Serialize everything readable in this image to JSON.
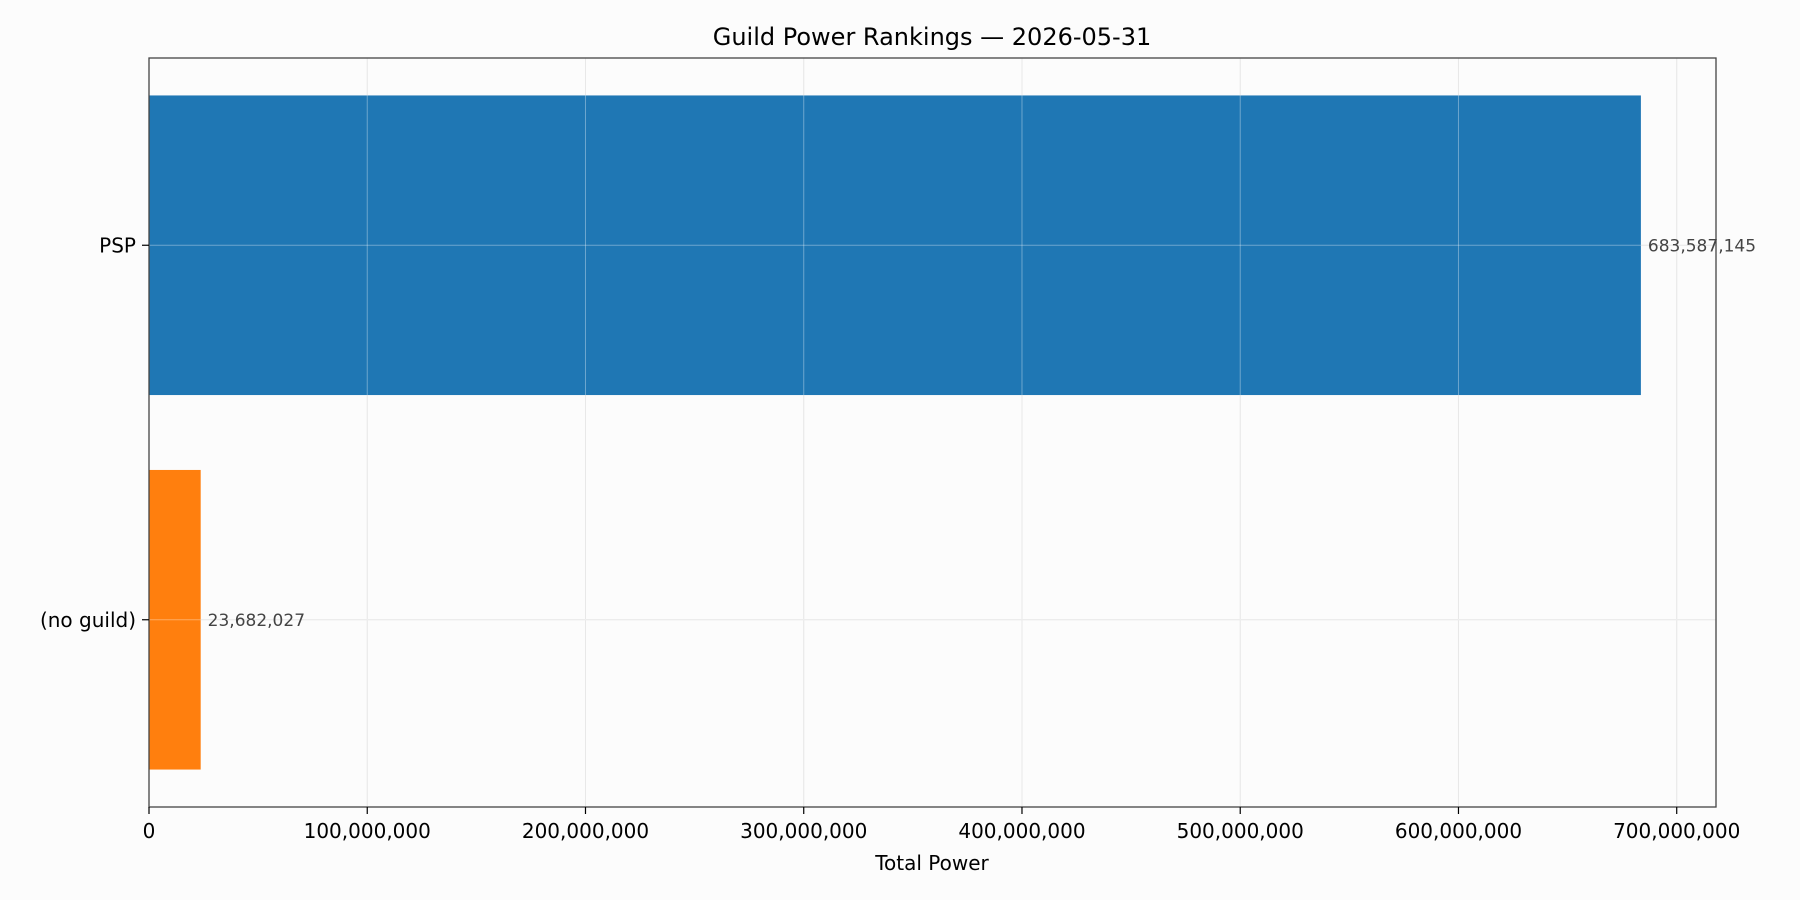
{
  "chart_data": {
    "type": "bar",
    "orientation": "horizontal",
    "title": "Guild Power Rankings — 2026-05-31",
    "xlabel": "Total Power",
    "ylabel": "",
    "categories": [
      "PSP",
      "(no guild)"
    ],
    "values": [
      683587145,
      23682027
    ],
    "value_labels": [
      "683,587,145",
      "23,682,027"
    ],
    "colors": [
      "#1f77b4",
      "#ff7f0e"
    ],
    "xlim": [
      0,
      718000000
    ],
    "xticks": [
      0,
      100000000,
      200000000,
      300000000,
      400000000,
      500000000,
      600000000,
      700000000
    ],
    "xtick_labels": [
      "0",
      "100,000,000",
      "200,000,000",
      "300,000,000",
      "400,000,000",
      "500,000,000",
      "600,000,000",
      "700,000,000"
    ],
    "grid": true
  }
}
